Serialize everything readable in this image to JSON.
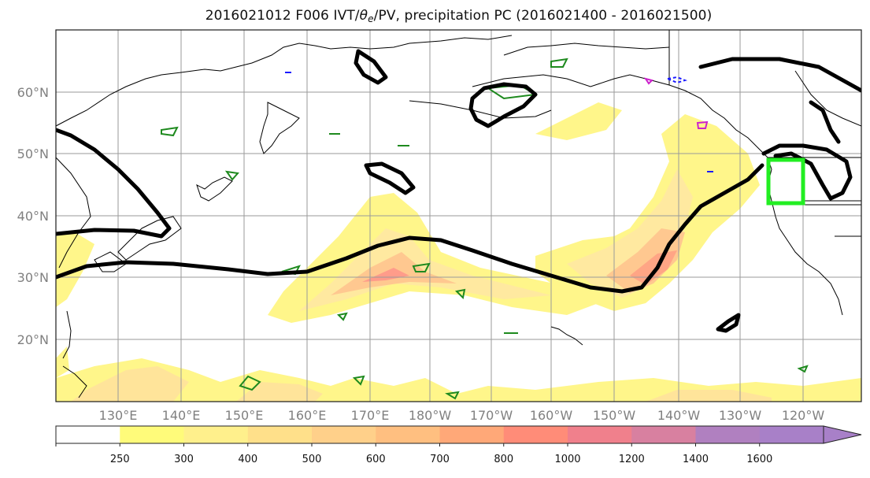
{
  "title": {
    "prefix": "2016021012 F006 IVT/",
    "theta_symbol": "θ",
    "theta_sub": "e",
    "suffix": "/PV, precipitation PC (2016021400 - 2016021500)"
  },
  "map": {
    "lat_labels": [
      "60°N",
      "50°N",
      "40°N",
      "30°N",
      "20°N"
    ],
    "lon_labels": [
      "130°E",
      "140°E",
      "150°E",
      "160°E",
      "170°E",
      "180°W",
      "170°W",
      "160°W",
      "150°W",
      "140°W",
      "130°W",
      "120°W"
    ],
    "colors": {
      "frame": "#1a1a1a",
      "grid": "#9a9a9a",
      "coast": "#000000",
      "pv_contour": "#000000",
      "theta_e_contour": "#1e8a1e",
      "precip_box": "#22ee22",
      "blue_contour": "#1a1aff",
      "magenta_contour": "#cc22cc",
      "tick_label": "#808080"
    },
    "precip_box_label": "precipitation box"
  },
  "colorbar": {
    "levels": [
      "250",
      "300",
      "400",
      "500",
      "600",
      "700",
      "800",
      "1000",
      "1200",
      "1400",
      "1600"
    ],
    "colors": [
      "#ffffff",
      "#fffb7a",
      "#fff08c",
      "#ffe08a",
      "#ffd08a",
      "#ffbf80",
      "#ffa878",
      "#ff8c78",
      "#f0808c",
      "#d880a0",
      "#b080c0",
      "#a880c8"
    ]
  }
}
